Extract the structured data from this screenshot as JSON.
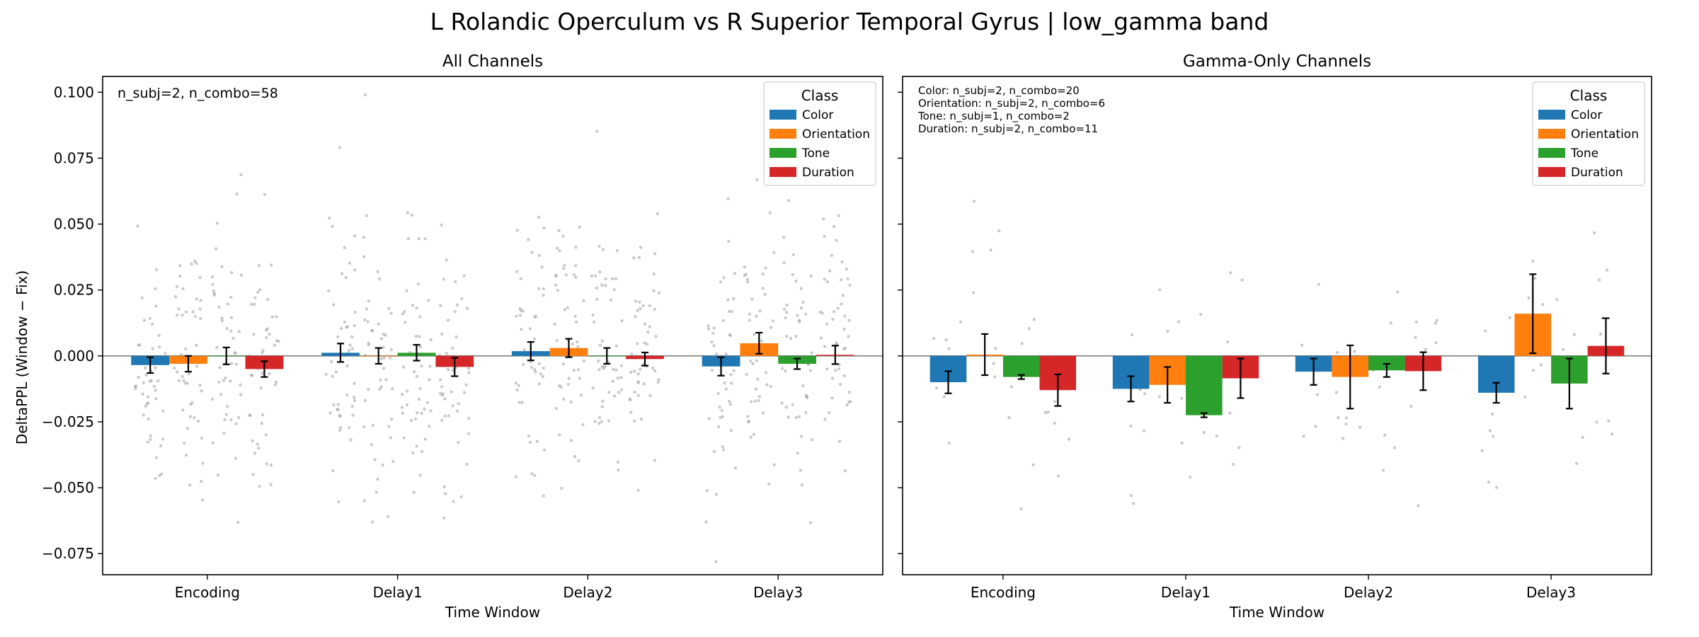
{
  "figure": {
    "suptitle": "L Rolandic Operculum vs R Superior Temporal Gyrus  |  low_gamma band",
    "ylabel": "DeltaPPL (Window − Fix)",
    "legend_title": "Class"
  },
  "classes": [
    "Color",
    "Orientation",
    "Tone",
    "Duration"
  ],
  "colors": {
    "Color": "#1f77b4",
    "Orientation": "#ff7f0e",
    "Tone": "#2ca02c",
    "Duration": "#d62728",
    "points": "#9e9e9e"
  },
  "chart_data": [
    {
      "type": "bar",
      "title": "All Channels",
      "xlabel": "Time Window",
      "categories": [
        "Encoding",
        "Delay1",
        "Delay2",
        "Delay3"
      ],
      "ylim": [
        -0.083,
        0.106
      ],
      "yticks": [
        -0.075,
        -0.05,
        -0.025,
        0.0,
        0.025,
        0.05,
        0.075,
        0.1
      ],
      "ytick_labels": [
        "−0.075",
        "−0.050",
        "−0.025",
        "0.000",
        "0.025",
        "0.050",
        "0.075",
        "0.100"
      ],
      "legend_placement": "top-right",
      "annotation": [
        "n_subj=2, n_combo=58"
      ],
      "series": [
        {
          "name": "Color",
          "values": [
            -0.0035,
            0.0012,
            0.0018,
            -0.004
          ],
          "err": [
            0.003,
            0.0035,
            0.0035,
            0.0035
          ]
        },
        {
          "name": "Orientation",
          "values": [
            -0.003,
            0.0,
            0.003,
            0.0048
          ],
          "err": [
            0.003,
            0.003,
            0.0035,
            0.004
          ]
        },
        {
          "name": "Tone",
          "values": [
            0.0,
            0.0012,
            0.0,
            -0.003
          ],
          "err": [
            0.0032,
            0.003,
            0.003,
            0.002
          ]
        },
        {
          "name": "Duration",
          "values": [
            -0.005,
            -0.0042,
            -0.0012,
            0.0004
          ],
          "err": [
            0.003,
            0.0035,
            0.0025,
            0.0035
          ]
        }
      ]
    },
    {
      "type": "bar",
      "title": "Gamma-Only Channels",
      "xlabel": "Time Window",
      "categories": [
        "Encoding",
        "Delay1",
        "Delay2",
        "Delay3"
      ],
      "ylim": [
        -0.083,
        0.106
      ],
      "yticks": [
        -0.075,
        -0.05,
        -0.025,
        0.0,
        0.025,
        0.05,
        0.075,
        0.1
      ],
      "ytick_labels": [
        "−0.075",
        "−0.050",
        "−0.025",
        "0.000",
        "0.025",
        "0.050",
        "0.075",
        "0.100"
      ],
      "legend_placement": "top-right",
      "annotation": [
        "Color: n_subj=2, n_combo=20",
        "Orientation: n_subj=2, n_combo=6",
        "Tone: n_subj=1, n_combo=2",
        "Duration: n_subj=2, n_combo=11"
      ],
      "series": [
        {
          "name": "Color",
          "values": [
            -0.01,
            -0.0125,
            -0.006,
            -0.014
          ],
          "err": [
            0.0042,
            0.0048,
            0.005,
            0.0038
          ]
        },
        {
          "name": "Orientation",
          "values": [
            0.0005,
            -0.011,
            -0.008,
            0.016
          ],
          "err": [
            0.0078,
            0.0068,
            0.012,
            0.015
          ]
        },
        {
          "name": "Tone",
          "values": [
            -0.008,
            -0.0225,
            -0.0055,
            -0.0105
          ],
          "err": [
            0.0008,
            0.0008,
            0.0025,
            0.0095
          ]
        },
        {
          "name": "Duration",
          "values": [
            -0.013,
            -0.0085,
            -0.0058,
            0.0038
          ],
          "err": [
            0.006,
            0.0075,
            0.0072,
            0.0105
          ]
        }
      ]
    }
  ]
}
